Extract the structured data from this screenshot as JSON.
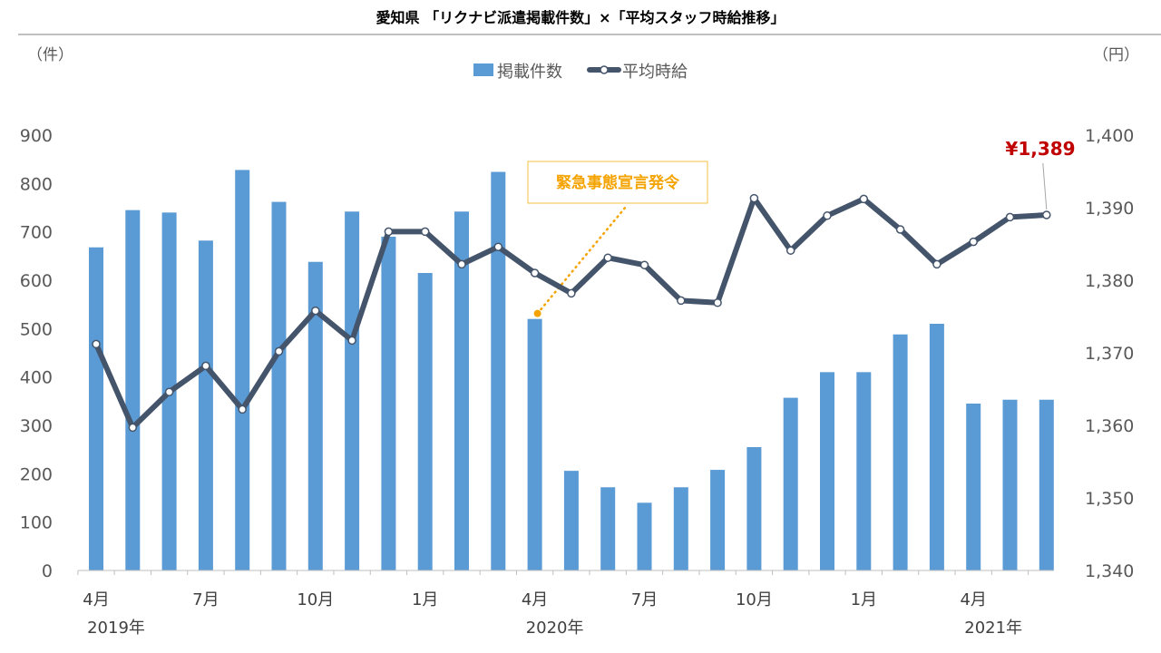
{
  "title": "愛知県 「リクナビ派遣掲載件数」×「平均スタッフ時給推移」",
  "colors": {
    "bar": "#5b9bd5",
    "line": "#44546a",
    "annotation": "#f5a300",
    "last_label": "#c00000",
    "axis": "#bfbfbf"
  },
  "chart_data": {
    "type": "bar+line",
    "title": "愛知県 「リクナビ派遣掲載件数」×「平均スタッフ時給推移」",
    "months": [
      "2019-04",
      "2019-05",
      "2019-06",
      "2019-07",
      "2019-08",
      "2019-09",
      "2019-10",
      "2019-11",
      "2019-12",
      "2020-01",
      "2020-02",
      "2020-03",
      "2020-04",
      "2020-05",
      "2020-06",
      "2020-07",
      "2020-08",
      "2020-09",
      "2020-10",
      "2020-11",
      "2020-12",
      "2021-01",
      "2021-02",
      "2021-03",
      "2021-04",
      "2021-05",
      "2021-06"
    ],
    "x_tick_labels": [
      {
        "index": 0,
        "label": "4月"
      },
      {
        "index": 3,
        "label": "7月"
      },
      {
        "index": 6,
        "label": "10月"
      },
      {
        "index": 9,
        "label": "1月"
      },
      {
        "index": 12,
        "label": "4月"
      },
      {
        "index": 15,
        "label": "7月"
      },
      {
        "index": 18,
        "label": "10月"
      },
      {
        "index": 21,
        "label": "1月"
      },
      {
        "index": 24,
        "label": "4月"
      }
    ],
    "year_labels": [
      {
        "index": 0,
        "label": "2019年"
      },
      {
        "index": 12,
        "label": "2020年"
      },
      {
        "index": 24,
        "label": "2021年"
      }
    ],
    "series": [
      {
        "name": "掲載件数",
        "type": "bar",
        "axis": "left",
        "values": [
          668,
          745,
          740,
          682,
          828,
          762,
          638,
          742,
          690,
          615,
          742,
          824,
          520,
          206,
          172,
          140,
          172,
          208,
          255,
          357,
          410,
          410,
          488,
          510,
          345,
          353,
          353
        ]
      },
      {
        "name": "平均時給",
        "type": "line",
        "axis": "right",
        "values": [
          1371.2,
          1359.7,
          1364.6,
          1368.2,
          1362.2,
          1370.2,
          1375.8,
          1371.7,
          1386.7,
          1386.7,
          1382.2,
          1384.6,
          1381.0,
          1378.2,
          1383.1,
          1382.1,
          1377.2,
          1376.9,
          1391.3,
          1384.1,
          1388.9,
          1391.2,
          1387.0,
          1382.2,
          1385.3,
          1388.7,
          1389.0
        ]
      }
    ],
    "y_left": {
      "unit": "（件）",
      "min": 0,
      "max": 900,
      "ticks": [
        "0",
        "100",
        "200",
        "300",
        "400",
        "500",
        "600",
        "700",
        "800",
        "900"
      ]
    },
    "y_right": {
      "unit": "（円）",
      "min": 1340,
      "max": 1400,
      "ticks": [
        "1,340",
        "1,350",
        "1,360",
        "1,370",
        "1,380",
        "1,390",
        "1,400"
      ]
    },
    "legend": {
      "position": "top-center",
      "items": [
        "掲載件数",
        "平均時給"
      ]
    },
    "annotations": {
      "event": {
        "label": "緊急事態宣言発令",
        "index": 12
      },
      "last_value": {
        "label": "¥1,389",
        "index": 26
      }
    },
    "grid": false
  }
}
